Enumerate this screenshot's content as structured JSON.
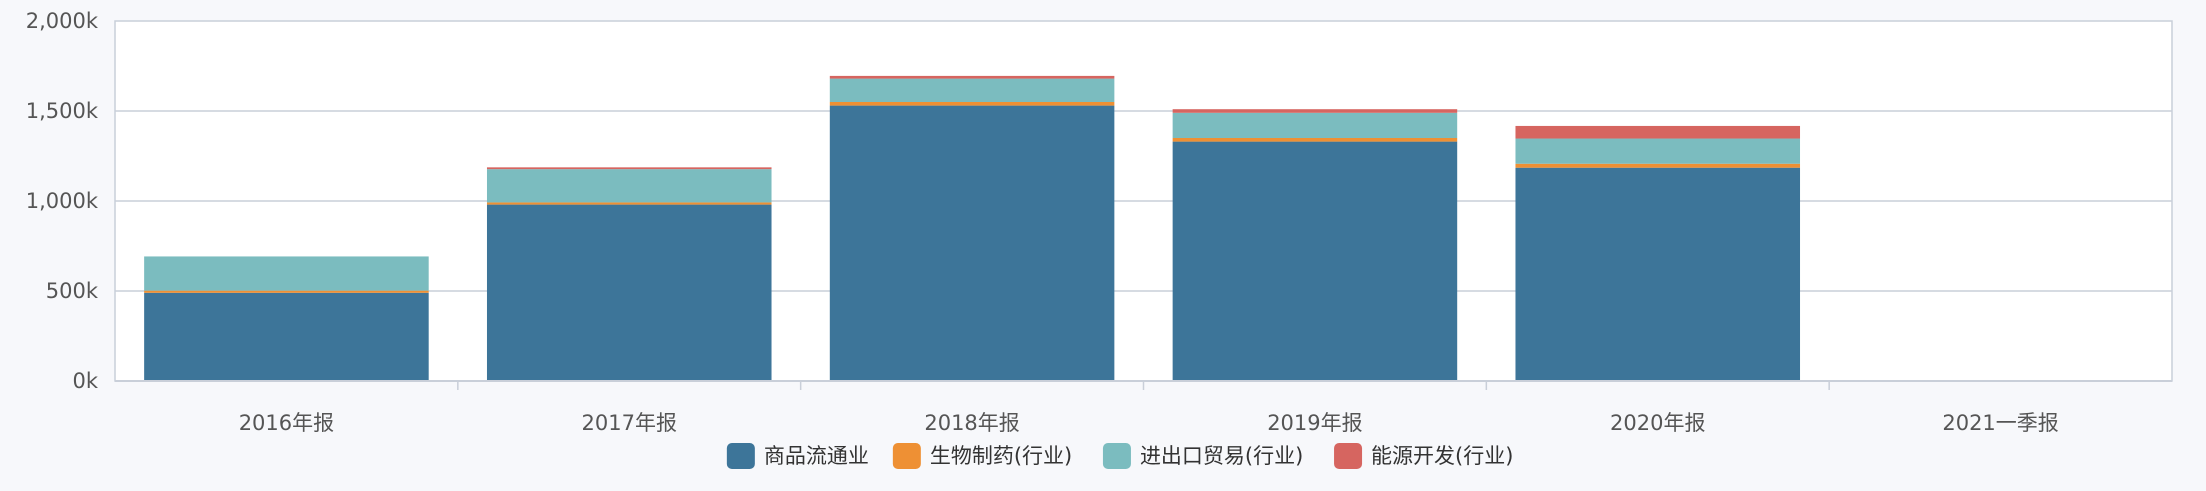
{
  "chart_data": {
    "type": "bar",
    "stacked": true,
    "categories": [
      "2016年报",
      "2017年报",
      "2018年报",
      "2019年报",
      "2020年报",
      "2021一季报"
    ],
    "series": [
      {
        "name": "商品流通业",
        "color": "#3d7599",
        "values": [
          490,
          980,
          1530,
          1330,
          1185,
          0
        ]
      },
      {
        "name": "生物制药(行业)",
        "color": "#ee9034",
        "values": [
          12,
          12,
          20,
          20,
          22,
          0
        ]
      },
      {
        "name": "进出口贸易(行业)",
        "color": "#7bbcbf",
        "values": [
          190,
          185,
          130,
          140,
          140,
          0
        ]
      },
      {
        "name": "能源开发(行业)",
        "color": "#d66560",
        "values": [
          0,
          10,
          15,
          20,
          70,
          0
        ]
      }
    ],
    "yticks": [
      "0k",
      "500k",
      "1,000k",
      "1,500k",
      "2,000k"
    ],
    "ylim": [
      0,
      2000
    ],
    "grid": true,
    "legend_position": "bottom-center"
  }
}
